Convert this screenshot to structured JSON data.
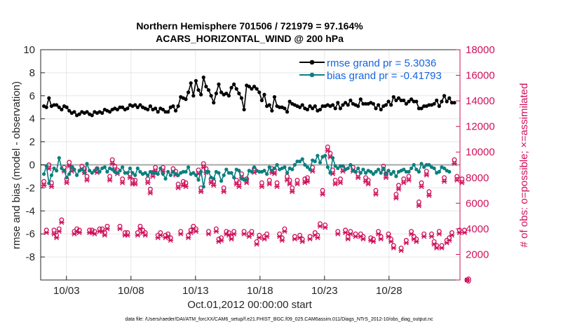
{
  "chart_data": {
    "type": "line",
    "title": "Northern Hemisphere 701506 / 721979 = 97.164%",
    "subtitle": "ACARS_HORIZONTAL_WIND @ 200 hPa",
    "xlabel": "Oct.01,2012 00:00:00 start",
    "ylabel_left": "rmse and bias (model - observation)",
    "ylabel_right": "# of obs: o=possible; ×=assimilated",
    "xlim": [
      1,
      33.5
    ],
    "ylim_left": [
      -10,
      10
    ],
    "ylim_right": [
      0,
      18000
    ],
    "xticks": [
      3,
      8,
      13,
      18,
      23,
      28
    ],
    "xtick_labels": [
      "10/03",
      "10/08",
      "10/13",
      "10/18",
      "10/23",
      "10/28"
    ],
    "yticks_left": [
      -8,
      -6,
      -4,
      -2,
      0,
      2,
      4,
      6,
      8,
      10
    ],
    "yticks_right": [
      0,
      2000,
      4000,
      6000,
      8000,
      10000,
      12000,
      14000,
      16000,
      18000
    ],
    "grid": true,
    "legend": "top-right",
    "footnote": "data file: /Users/raeder/DAI/ATM_forcXX/CAM6_setup/f.e21.FHIST_BGC.f09_025.CAM6assim.011/Diags_NTrS_2012-10/obs_diag_output.nc",
    "series": [
      {
        "name": "rmse grand pr = 5.3036",
        "color": "#000000",
        "marker": "circle",
        "axis": "left",
        "values": [
          5.1,
          5.0,
          5.8,
          5.1,
          5.2,
          5.2,
          5.0,
          4.8,
          5.1,
          5.0,
          4.7,
          4.5,
          4.6,
          4.3,
          4.4,
          4.6,
          4.5,
          4.6,
          4.4,
          4.3,
          4.6,
          4.5,
          4.6,
          4.5,
          4.8,
          4.7,
          4.6,
          4.8,
          4.9,
          4.8,
          5.0,
          5.0,
          4.8,
          4.9,
          5.2,
          5.1,
          5.2,
          5.0,
          5.2,
          5.0,
          4.9,
          4.8,
          5.1,
          4.8,
          4.9,
          4.6,
          4.9,
          4.8,
          4.6,
          4.6,
          5.0,
          5.1,
          4.7,
          5.1,
          5.9,
          5.8,
          5.7,
          6.3,
          7.1,
          6.0,
          7.3,
          6.5,
          6.1,
          7.6,
          6.8,
          6.5,
          6.0,
          5.4,
          6.2,
          7.0,
          6.3,
          6.1,
          6.2,
          6.0,
          6.7,
          7.0,
          6.6,
          6.2,
          5.8,
          4.8,
          6.9,
          6.8,
          6.6,
          6.8,
          6.6,
          6.3,
          5.6,
          6.1,
          5.1,
          5.2,
          4.7,
          5.9,
          5.1,
          5.0,
          5.0,
          4.9,
          4.6,
          5.5,
          5.3,
          5.2,
          5.1,
          5.0,
          5.2,
          4.9,
          4.8,
          5.1,
          4.9,
          5.1,
          4.7,
          4.8,
          5.1,
          5.1,
          5.2,
          5.1,
          5.2,
          4.9,
          5.4,
          4.9,
          5.2,
          5.4,
          5.2,
          5.6,
          5.3,
          5.2,
          5.1,
          5.7,
          5.3,
          5.3,
          5.3,
          5.4,
          5.3,
          4.9,
          5.2,
          4.8,
          5.1,
          5.2,
          5.5,
          5.2,
          5.9,
          5.6,
          5.8,
          5.6,
          5.6,
          5.3,
          5.5,
          5.7,
          5.5,
          5.5,
          4.9,
          4.9,
          5.1,
          5.1,
          5.2,
          5.2,
          5.3,
          5.6,
          5.1,
          5.5,
          6.0,
          5.5,
          5.8,
          5.4,
          5.4
        ]
      },
      {
        "name": "bias grand pr = -0.41793",
        "color": "#0b7f7f",
        "marker": "circle",
        "axis": "left",
        "values": [
          -0.8,
          -0.1,
          -1.6,
          -0.9,
          -0.3,
          -0.5,
          0.6,
          -0.3,
          -0.5,
          -1.1,
          -0.8,
          -0.2,
          -0.4,
          -0.9,
          -0.5,
          -0.4,
          -0.7,
          0.1,
          -0.5,
          -0.7,
          -0.5,
          -0.3,
          -0.6,
          -0.3,
          -0.2,
          -0.6,
          -0.3,
          -0.4,
          -0.6,
          -0.7,
          -0.5,
          -0.2,
          -0.7,
          -0.7,
          -0.3,
          -0.7,
          -0.9,
          -0.3,
          -0.6,
          -0.8,
          -0.7,
          -0.9,
          -0.6,
          -0.7,
          -0.7,
          -0.8,
          -0.3,
          -0.8,
          -1.2,
          -0.6,
          -0.9,
          -0.6,
          -0.8,
          -0.9,
          -0.7,
          -0.6,
          -0.6,
          -0.2,
          -0.8,
          -0.7,
          -0.9,
          -1.3,
          -0.6,
          -1.9,
          -0.6,
          -0.6,
          -1.1,
          -1.2,
          -0.6,
          -0.7,
          -1.4,
          -0.9,
          -0.4,
          -0.7,
          -0.7,
          -1.1,
          -0.4,
          -0.5,
          -1.2,
          -1.3,
          -1.3,
          -0.5,
          -0.6,
          -0.2,
          -0.5,
          -0.6,
          -0.6,
          -0.5,
          -0.8,
          -0.2,
          -0.5,
          -0.3,
          0.0,
          -0.4,
          -0.3,
          -0.2,
          -0.7,
          -0.3,
          -0.4,
          0.0,
          0.3,
          0.3,
          0.5,
          0.0,
          -0.2,
          -0.4,
          0.4,
          0.3,
          0.8,
          0.2,
          0.7,
          0.8,
          -0.2,
          -0.7,
          0.6,
          -0.1,
          -0.3,
          -0.1,
          -0.1,
          -0.4,
          -0.3,
          0.0,
          -0.5,
          -0.6,
          -0.3,
          -0.7,
          -0.4,
          -0.7,
          -0.5,
          -0.6,
          -0.8,
          -0.6,
          -0.4,
          -0.7,
          -0.3,
          -0.8,
          -0.5,
          -0.8,
          -0.6,
          -1.0,
          -0.6,
          -0.5,
          -0.4,
          -0.6,
          -0.6,
          -0.3,
          0.0,
          -0.4,
          -0.6,
          0.1,
          -0.2,
          0.0,
          0.0,
          -0.2,
          -0.3,
          -0.7,
          -0.6,
          -0.2,
          -0.3,
          -0.5,
          -0.6
        ]
      },
      {
        "name": "obs possible",
        "color": "#d0105a",
        "marker": "o",
        "axis": "right",
        "values": [
          7700,
          3900,
          9000,
          7600,
          3900,
          3500,
          4000,
          4700,
          8800,
          7900,
          9200,
          8800,
          3800,
          4000,
          3900,
          8900,
          8700,
          8100,
          3900,
          3900,
          3800,
          8700,
          4000,
          4000,
          3700,
          4200,
          8100,
          9400,
          8900,
          8600,
          4200,
          7900,
          3700,
          3700,
          8300,
          7800,
          7800,
          3700,
          4200,
          3900,
          3700,
          7900,
          7100,
          8400,
          8800,
          3500,
          3700,
          8800,
          3500,
          3600,
          3300,
          8700,
          8500,
          7500,
          3800,
          7700,
          7600,
          3500,
          3900,
          4200,
          4000,
          8600,
          7200,
          9100,
          8700,
          3800,
          7900,
          7700,
          4000,
          3200,
          3300,
          7200,
          3800,
          3700,
          3400,
          3800,
          7800,
          7600,
          8300,
          3800,
          7900,
          3600,
          3800,
          8700,
          3000,
          3500,
          7600,
          3400,
          3600,
          7800,
          8700,
          8600,
          7600,
          3600,
          3300,
          4000,
          8100,
          7800,
          7200,
          3400,
          7800,
          3500,
          3200,
          7900,
          8000,
          3400,
          8800,
          3700,
          3500,
          4400,
          7000,
          4300,
          10400,
          9900,
          8600,
          7800,
          3800,
          7900,
          8800,
          3900,
          3400,
          3800,
          8800,
          3600,
          8300,
          3600,
          3400,
          8000,
          7800,
          3300,
          3200,
          7000,
          3800,
          3400,
          8900,
          8300,
          3600,
          3200,
          2700,
          6700,
          7400,
          2500,
          7900,
          3100,
          8100,
          3800,
          3400,
          3200,
          6100,
          7600,
          3600,
          8500,
          6900,
          3600,
          3000,
          2700,
          3800,
          2700,
          8000,
          3100,
          3300,
          3700,
          9400,
          8100,
          3900,
          7900,
          3900,
          0
        ]
      },
      {
        "name": "obs assimilated",
        "color": "#d0105a",
        "marker": "x",
        "axis": "right",
        "values": [
          7400,
          3700,
          8700,
          7300,
          3600,
          3300,
          3800,
          4500,
          8500,
          7600,
          8900,
          8500,
          3600,
          3800,
          3700,
          8600,
          8400,
          7800,
          3700,
          3700,
          3600,
          8400,
          3800,
          3800,
          3500,
          4000,
          7800,
          9100,
          8600,
          8300,
          4000,
          7600,
          3500,
          3500,
          8000,
          7500,
          7500,
          3500,
          4000,
          3700,
          3500,
          7600,
          6800,
          8100,
          8500,
          3300,
          3500,
          8500,
          3300,
          3400,
          3100,
          8400,
          8200,
          7200,
          3600,
          7400,
          7300,
          3300,
          3700,
          4000,
          3800,
          8300,
          6900,
          8800,
          8400,
          3600,
          7600,
          7400,
          3800,
          3000,
          3100,
          6900,
          3600,
          3500,
          3200,
          3600,
          7500,
          7300,
          8000,
          3600,
          7600,
          3400,
          3600,
          8400,
          2800,
          3300,
          7300,
          3200,
          3400,
          7500,
          8400,
          8300,
          7300,
          3400,
          3100,
          3800,
          7800,
          7500,
          6900,
          3200,
          7500,
          3300,
          3000,
          7600,
          7700,
          3200,
          8500,
          3500,
          3300,
          4200,
          6700,
          4100,
          10100,
          9600,
          8300,
          7500,
          3600,
          7600,
          8500,
          3700,
          3200,
          3600,
          8500,
          3400,
          8000,
          3400,
          3200,
          7700,
          7500,
          3100,
          3000,
          6700,
          3600,
          3200,
          8600,
          8000,
          3400,
          3000,
          2500,
          6400,
          7100,
          2300,
          7600,
          2900,
          7800,
          3600,
          3200,
          3000,
          5800,
          7300,
          3400,
          8200,
          6600,
          3400,
          2800,
          2500,
          3600,
          2500,
          7700,
          2900,
          3100,
          3500,
          9100,
          7800,
          3700,
          7600,
          3700,
          0
        ]
      }
    ]
  },
  "colors": {
    "rmse": "#000000",
    "bias": "#0b7f7f",
    "obs": "#d0105a",
    "legend_text": "#1565e0",
    "zero_line": "#a8a8a8"
  }
}
